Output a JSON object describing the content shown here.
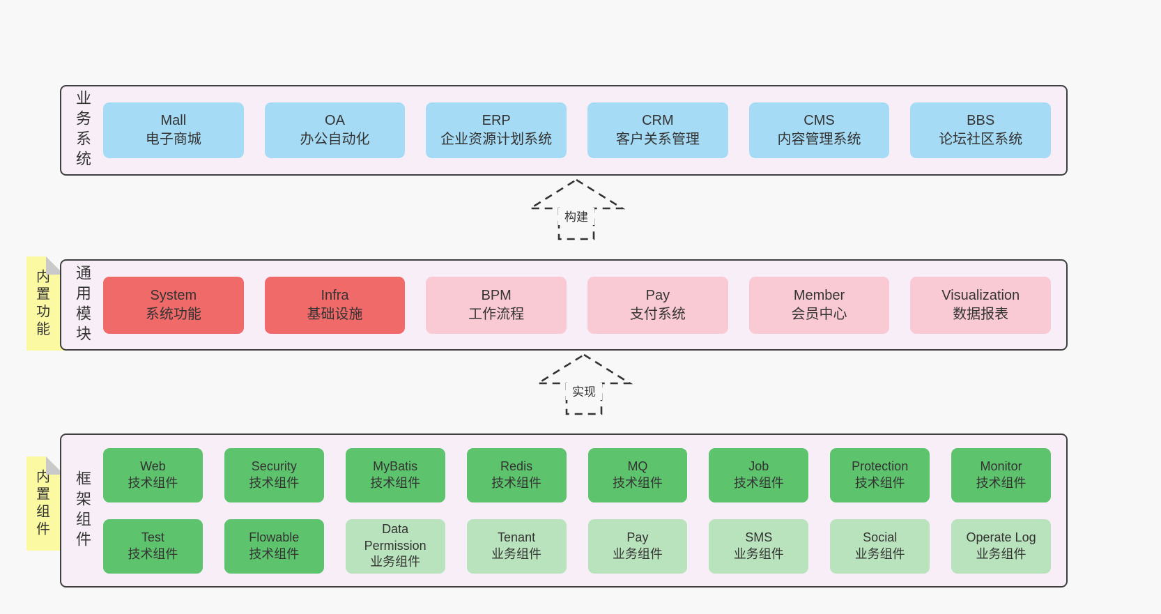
{
  "colors": {
    "page_bg": "#f8f8f8",
    "panel_bg": "#f8eef7",
    "panel_border": "#3f3f3f",
    "blue": "#a6dbf5",
    "red": "#f06a6a",
    "pink": "#f9cad3",
    "green_dark": "#5dc36d",
    "green_light": "#b9e3bc",
    "note_yellow": "#fbf9a2",
    "note_fold": "#c9c9c9",
    "text": "#333333"
  },
  "arrows": [
    {
      "label": "构建"
    },
    {
      "label": "实现"
    }
  ],
  "panels": [
    {
      "label": "业务系统",
      "note": null,
      "rows": [
        [
          {
            "en": "Mall",
            "zh": "电子商城",
            "variant": "blue"
          },
          {
            "en": "OA",
            "zh": "办公自动化",
            "variant": "blue"
          },
          {
            "en": "ERP",
            "zh": "企业资源计划系统",
            "variant": "blue"
          },
          {
            "en": "CRM",
            "zh": "客户关系管理",
            "variant": "blue"
          },
          {
            "en": "CMS",
            "zh": "内容管理系统",
            "variant": "blue"
          },
          {
            "en": "BBS",
            "zh": "论坛社区系统",
            "variant": "blue"
          }
        ]
      ]
    },
    {
      "label": "通用模块",
      "note": "内置功能",
      "rows": [
        [
          {
            "en": "System",
            "zh": "系统功能",
            "variant": "red"
          },
          {
            "en": "Infra",
            "zh": "基础设施",
            "variant": "red"
          },
          {
            "en": "BPM",
            "zh": "工作流程",
            "variant": "pink"
          },
          {
            "en": "Pay",
            "zh": "支付系统",
            "variant": "pink"
          },
          {
            "en": "Member",
            "zh": "会员中心",
            "variant": "pink"
          },
          {
            "en": "Visualization",
            "zh": "数据报表",
            "variant": "pink"
          }
        ]
      ]
    },
    {
      "label": "框架组件",
      "note": "内置组件",
      "rows": [
        [
          {
            "en": "Web",
            "zh": "技术组件",
            "variant": "green-dark"
          },
          {
            "en": "Security",
            "zh": "技术组件",
            "variant": "green-dark"
          },
          {
            "en": "MyBatis",
            "zh": "技术组件",
            "variant": "green-dark"
          },
          {
            "en": "Redis",
            "zh": "技术组件",
            "variant": "green-dark"
          },
          {
            "en": "MQ",
            "zh": "技术组件",
            "variant": "green-dark"
          },
          {
            "en": "Job",
            "zh": "技术组件",
            "variant": "green-dark"
          },
          {
            "en": "Protection",
            "zh": "技术组件",
            "variant": "green-dark"
          },
          {
            "en": "Monitor",
            "zh": "技术组件",
            "variant": "green-dark"
          }
        ],
        [
          {
            "en": "Test",
            "zh": "技术组件",
            "variant": "green-dark"
          },
          {
            "en": "Flowable",
            "zh": "技术组件",
            "variant": "green-dark"
          },
          {
            "en": "Data Permission",
            "zh": "业务组件",
            "variant": "green-light"
          },
          {
            "en": "Tenant",
            "zh": "业务组件",
            "variant": "green-light"
          },
          {
            "en": "Pay",
            "zh": "业务组件",
            "variant": "green-light"
          },
          {
            "en": "SMS",
            "zh": "业务组件",
            "variant": "green-light"
          },
          {
            "en": "Social",
            "zh": "业务组件",
            "variant": "green-light"
          },
          {
            "en": "Operate Log",
            "zh": "业务组件",
            "variant": "green-light"
          }
        ]
      ]
    }
  ]
}
